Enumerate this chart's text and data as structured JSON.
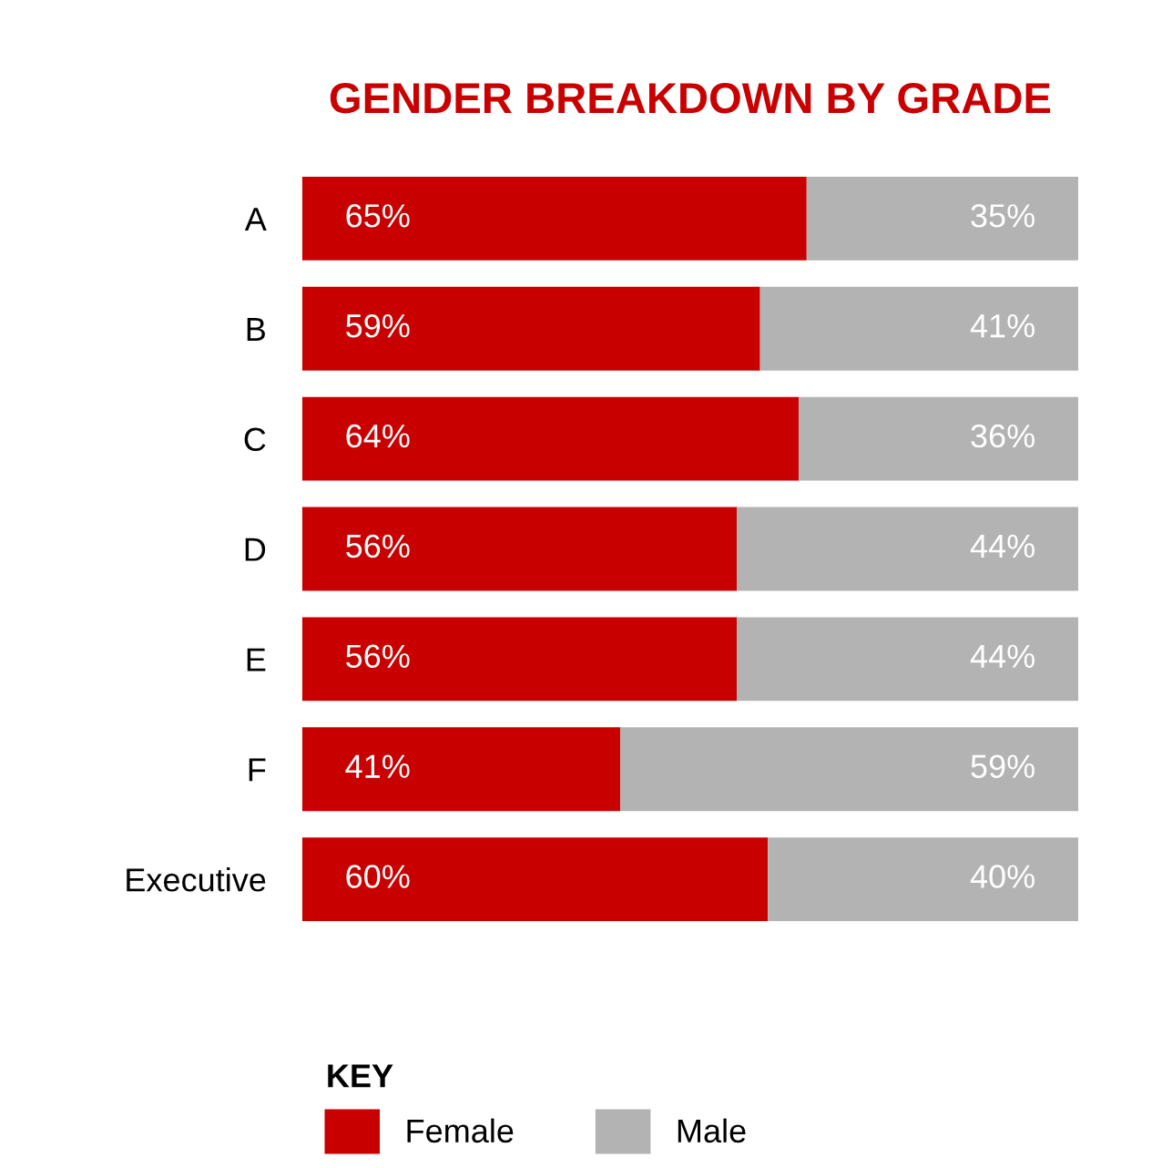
{
  "chart_data": {
    "type": "bar",
    "orientation": "horizontal",
    "stacked": true,
    "title": "GENDER BREAKDOWN BY GRADE",
    "legend_title": "KEY",
    "legend": "bottom",
    "grid": false,
    "tick_labels": "y",
    "xlim": [
      0,
      100
    ],
    "categories": [
      "A",
      "B",
      "C",
      "D",
      "E",
      "F",
      "Executive"
    ],
    "series": [
      {
        "name": "Female",
        "color": "#c80000",
        "values": [
          65,
          59,
          64,
          56,
          56,
          41,
          60
        ],
        "value_labels": [
          "65%",
          "59%",
          "64%",
          "56%",
          "56%",
          "41%",
          "60%"
        ]
      },
      {
        "name": "Male",
        "color": "#b3b3b3",
        "values": [
          35,
          41,
          36,
          44,
          44,
          59,
          40
        ],
        "value_labels": [
          "35%",
          "41%",
          "36%",
          "44%",
          "44%",
          "59%",
          "40%"
        ]
      }
    ]
  }
}
